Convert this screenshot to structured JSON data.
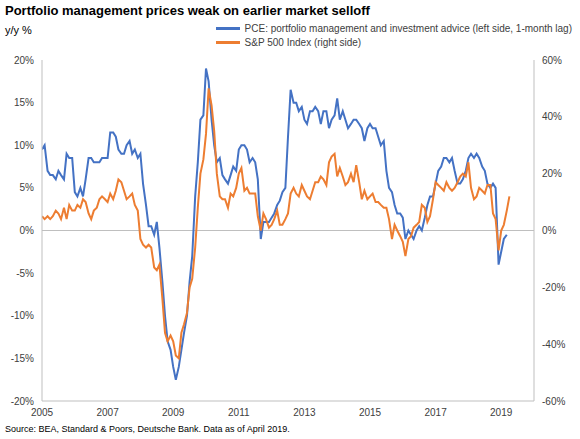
{
  "chart_data": {
    "type": "line",
    "title": "Portfolio management prices weak on earlier market selloff",
    "subtitle": "y/y %",
    "source": "Source: BEA, Standard & Poors, Deutsche Bank. Data as of April 2019.",
    "x": [
      2005,
      2005.08,
      2005.17,
      2005.25,
      2005.33,
      2005.42,
      2005.5,
      2005.58,
      2005.67,
      2005.75,
      2005.83,
      2005.92,
      2006,
      2006.08,
      2006.17,
      2006.25,
      2006.33,
      2006.42,
      2006.5,
      2006.58,
      2006.67,
      2006.75,
      2006.83,
      2006.92,
      2007,
      2007.08,
      2007.17,
      2007.25,
      2007.33,
      2007.42,
      2007.5,
      2007.58,
      2007.67,
      2007.75,
      2007.83,
      2007.92,
      2008,
      2008.08,
      2008.17,
      2008.25,
      2008.33,
      2008.42,
      2008.5,
      2008.58,
      2008.67,
      2008.75,
      2008.83,
      2008.92,
      2009,
      2009.08,
      2009.17,
      2009.25,
      2009.33,
      2009.42,
      2009.5,
      2009.58,
      2009.67,
      2009.75,
      2009.83,
      2009.92,
      2010,
      2010.08,
      2010.17,
      2010.25,
      2010.33,
      2010.42,
      2010.5,
      2010.58,
      2010.67,
      2010.75,
      2010.83,
      2010.92,
      2011,
      2011.08,
      2011.17,
      2011.25,
      2011.33,
      2011.42,
      2011.5,
      2011.58,
      2011.67,
      2011.75,
      2011.83,
      2011.92,
      2012,
      2012.08,
      2012.17,
      2012.25,
      2012.33,
      2012.42,
      2012.5,
      2012.58,
      2012.67,
      2012.75,
      2012.83,
      2012.92,
      2013,
      2013.08,
      2013.17,
      2013.25,
      2013.33,
      2013.42,
      2013.5,
      2013.58,
      2013.67,
      2013.75,
      2013.83,
      2013.92,
      2014,
      2014.08,
      2014.17,
      2014.25,
      2014.33,
      2014.42,
      2014.5,
      2014.58,
      2014.67,
      2014.75,
      2014.83,
      2014.92,
      2015,
      2015.08,
      2015.17,
      2015.25,
      2015.33,
      2015.42,
      2015.5,
      2015.58,
      2015.67,
      2015.75,
      2015.83,
      2015.92,
      2016,
      2016.08,
      2016.17,
      2016.25,
      2016.33,
      2016.42,
      2016.5,
      2016.58,
      2016.67,
      2016.75,
      2016.83,
      2016.92,
      2017,
      2017.08,
      2017.17,
      2017.25,
      2017.33,
      2017.42,
      2017.5,
      2017.58,
      2017.67,
      2017.75,
      2017.83,
      2017.92,
      2018,
      2018.08,
      2018.17,
      2018.25,
      2018.33,
      2018.42,
      2018.5,
      2018.58,
      2018.67,
      2018.75,
      2018.83,
      2018.92,
      2019,
      2019.08,
      2019.17,
      2019.25
    ],
    "series": [
      {
        "name": "PCE: portfolio management and investment advice (left side, 1-month lag)",
        "color": "#4472c4",
        "values": [
          9.5,
          10,
          7,
          6.5,
          6.5,
          6,
          7,
          6.5,
          6,
          9,
          8.5,
          8.5,
          4.5,
          4,
          5,
          4,
          6,
          8.5,
          8.5,
          8,
          8,
          8,
          8.5,
          8.5,
          8.5,
          11.5,
          11.5,
          11,
          9.5,
          9,
          9,
          10,
          10.5,
          9,
          9.5,
          8.5,
          9,
          5.5,
          3,
          0.5,
          0.5,
          -0.5,
          1,
          -2,
          -6,
          -10,
          -13,
          -14,
          -16,
          -17.5,
          -16,
          -14,
          -12,
          -10,
          -6,
          -3,
          4,
          8,
          13,
          13.5,
          19,
          17.5,
          13,
          10,
          8,
          8.5,
          6.5,
          6,
          5.5,
          6.5,
          7.5,
          7,
          9.5,
          10,
          10,
          9.5,
          8,
          8.5,
          8,
          6,
          -1,
          1,
          1,
          1,
          1.5,
          2,
          3,
          3.5,
          4.5,
          5,
          11,
          16.5,
          15,
          15,
          14,
          14.5,
          13,
          12.5,
          14,
          14,
          14.5,
          14,
          12.5,
          14,
          14,
          12,
          13,
          13.5,
          15.5,
          13,
          14,
          13,
          12,
          12.5,
          13,
          13,
          12.5,
          12,
          10.5,
          12,
          12.5,
          12,
          12,
          11,
          10,
          10.5,
          7,
          5,
          4.5,
          3,
          2,
          2,
          1.5,
          -1,
          0,
          -0.5,
          -1,
          0,
          0.5,
          0,
          1.5,
          3,
          4,
          4,
          5.5,
          7,
          7.5,
          8.5,
          8.5,
          8,
          8.5,
          7,
          5.5,
          5.5,
          6,
          7,
          8.5,
          9,
          8.5,
          9,
          8.5,
          7.5,
          7,
          5.5,
          5,
          5.5,
          5,
          -4,
          -2.5,
          -1,
          -0.5,
          null
        ]
      },
      {
        "name": "S&P 500 Index (right side)",
        "color": "#ed7d31",
        "axis": "y2",
        "values": [
          5,
          4,
          5,
          4,
          5,
          7,
          6,
          4,
          8,
          4,
          9,
          7,
          7,
          9,
          8,
          11,
          10,
          6,
          4,
          7,
          8,
          11,
          12,
          11,
          10,
          13,
          11,
          14,
          18,
          17,
          14,
          11,
          12,
          13,
          9,
          7,
          -3,
          -5,
          -6,
          -5,
          -6,
          -13,
          -14,
          -12,
          -24,
          -36,
          -39,
          -37,
          -39,
          -44,
          -45,
          -36,
          -33,
          -29,
          -20,
          -17,
          -6,
          8,
          20,
          25,
          34,
          50,
          44,
          35,
          20,
          12,
          11,
          11,
          8,
          13,
          12,
          15,
          20,
          22,
          14,
          15,
          13,
          13,
          13,
          5,
          0,
          6,
          4,
          1,
          2,
          4,
          7,
          2,
          2,
          4,
          6,
          13,
          15,
          13,
          12,
          16,
          14,
          12,
          11,
          14,
          17,
          17,
          19,
          18,
          16,
          24,
          26,
          27,
          19,
          22,
          19,
          16,
          17,
          20,
          17,
          23,
          17,
          11,
          14,
          11,
          12,
          13,
          10,
          10,
          9,
          8,
          8,
          4,
          -3,
          2,
          0,
          -2,
          -4,
          -9,
          -3,
          -2,
          1,
          2,
          3,
          9,
          8,
          3,
          5,
          11,
          17,
          16,
          15,
          14,
          17,
          15,
          14,
          15,
          17,
          19,
          20,
          19,
          24,
          15,
          11,
          12,
          15,
          14,
          13,
          16,
          16,
          6,
          4,
          -7,
          0,
          2,
          7,
          12
        ]
      }
    ],
    "xlim": [
      2005,
      2020
    ],
    "xticks": [
      2005,
      2007,
      2009,
      2011,
      2013,
      2015,
      2017,
      2019
    ],
    "ylim": [
      -20,
      20
    ],
    "yticks": [
      {
        "value": -20,
        "label": "-20%"
      },
      {
        "value": -15,
        "label": "-15%"
      },
      {
        "value": -10,
        "label": "-10%"
      },
      {
        "value": -5,
        "label": "-5%"
      },
      {
        "value": 0,
        "label": "0%"
      },
      {
        "value": 5,
        "label": "5%"
      },
      {
        "value": 10,
        "label": "10%"
      },
      {
        "value": 15,
        "label": "15%"
      },
      {
        "value": 20,
        "label": "20%"
      }
    ],
    "y2lim": [
      -60,
      60
    ],
    "y2ticks": [
      {
        "value": -60,
        "label": "-60%"
      },
      {
        "value": -40,
        "label": "-40%"
      },
      {
        "value": -20,
        "label": "-20%"
      },
      {
        "value": 0,
        "label": "0%"
      },
      {
        "value": 20,
        "label": "20%"
      },
      {
        "value": 40,
        "label": "40%"
      },
      {
        "value": 60,
        "label": "60%"
      }
    ],
    "legend": "top-right",
    "grid": false
  }
}
